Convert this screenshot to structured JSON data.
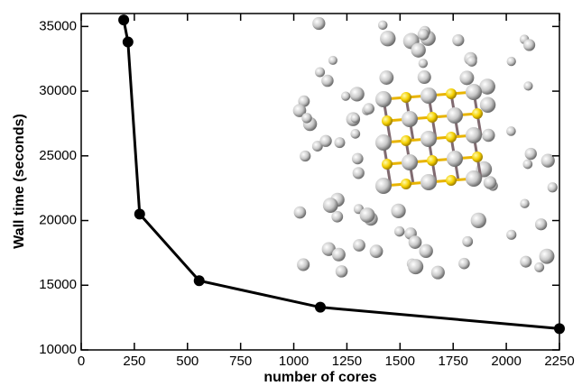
{
  "chart_data": {
    "type": "line",
    "x_label": "number of cores",
    "y_label": "Wall time (seconds)",
    "x": [
      200,
      220,
      275,
      555,
      1125,
      2250
    ],
    "series": [
      {
        "name": "wall time",
        "color": "#000000",
        "values": [
          35500,
          33800,
          20500,
          15350,
          13300,
          11650
        ]
      }
    ],
    "xlim": [
      0,
      2250
    ],
    "xticks": [
      0,
      250,
      500,
      750,
      1000,
      1250,
      1500,
      1750,
      2000,
      2250
    ],
    "ylim": [
      10000,
      36000
    ],
    "yticks": [
      10000,
      15000,
      20000,
      25000,
      30000,
      35000
    ],
    "grid": false,
    "legend": false
  }
}
